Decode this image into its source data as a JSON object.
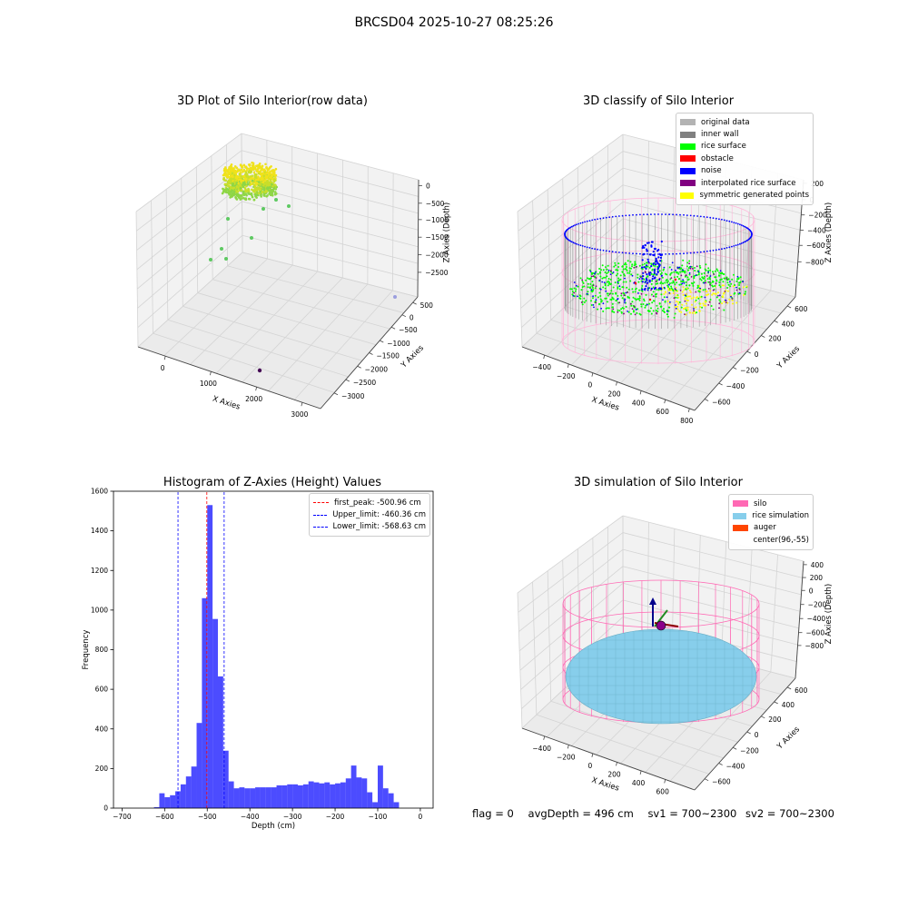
{
  "suptitle": "BRCSD04 2025-10-27 08:25:26",
  "panels": {
    "raw": {
      "title": "3D Plot of Silo Interior(row data)",
      "xlabel": "X Axies",
      "ylabel": "Y Axies",
      "zlabel": "Z Axies (Depth)",
      "xticks": [
        "0",
        "1000",
        "2000",
        "3000"
      ],
      "yticks": [
        "500",
        "0",
        "−500",
        "−1000",
        "−1500",
        "−2000",
        "−2500",
        "−3000"
      ],
      "zticks": [
        "0",
        "−500",
        "−1000",
        "−1500",
        "−2000",
        "−2500"
      ]
    },
    "classify": {
      "title": "3D classify of Silo Interior",
      "xlabel": "X Axies",
      "ylabel": "Y Axies",
      "zlabel": "Z Axies (Depth)",
      "xticks": [
        "−400",
        "−200",
        "0",
        "200",
        "400",
        "600",
        "800"
      ],
      "yticks": [
        "600",
        "400",
        "200",
        "0",
        "−200",
        "−400",
        "−600"
      ],
      "zticks": [
        "200",
        "0",
        "−200",
        "−400",
        "−600",
        "−800"
      ],
      "legend": [
        {
          "label": "original data",
          "color": "#b3b3b3"
        },
        {
          "label": "inner wall",
          "color": "#808080"
        },
        {
          "label": "rice surface",
          "color": "#00ff00"
        },
        {
          "label": "obstacle",
          "color": "#ff0000"
        },
        {
          "label": "noise",
          "color": "#0000ff"
        },
        {
          "label": "interpolated rice surface",
          "color": "#800080"
        },
        {
          "label": "symmetric generated points",
          "color": "#ffff00"
        }
      ]
    },
    "histogram": {
      "title": "Histogram of Z-Axies (Height) Values",
      "legend": [
        {
          "label": "first_peak: -500.96 cm",
          "color": "#ff0000"
        },
        {
          "label": "Upper_limit: -460.36 cm",
          "color": "#0000ff"
        },
        {
          "label": "Lower_limit: -568.63 cm",
          "color": "#0000ff"
        }
      ]
    },
    "simulation": {
      "title": "3D simulation of Silo Interior",
      "xlabel": "X Axies",
      "ylabel": "Y Axies",
      "zlabel": "Z Axies (Depth)",
      "xticks": [
        "−400",
        "−200",
        "0",
        "200",
        "400",
        "600"
      ],
      "yticks": [
        "600",
        "400",
        "200",
        "0",
        "−200",
        "−400",
        "−600"
      ],
      "zticks": [
        "400",
        "200",
        "0",
        "−200",
        "−400",
        "−600",
        "−800"
      ],
      "legend": [
        {
          "label": "silo",
          "color": "#ff69b4"
        },
        {
          "label": "rice simulation",
          "color": "#87ceeb"
        },
        {
          "label": "auger",
          "color": "#ff4500"
        },
        {
          "label": "center(96,-55)",
          "color": "#ffffff"
        }
      ]
    }
  },
  "footer": {
    "flag": "flag = 0",
    "avg": "avgDepth = 496 cm",
    "sv1": "sv1 = 700~2300",
    "sv2": "sv2 = 700~2300"
  },
  "chart_data": {
    "type": "bar",
    "title": "Histogram of Z-Axies (Height) Values",
    "xlabel": "Depth (cm)",
    "ylabel": "Frequency",
    "xlim": [
      -720,
      30
    ],
    "ylim": [
      0,
      1600
    ],
    "xticks": [
      -700,
      -600,
      -500,
      -400,
      -300,
      -200,
      -100,
      0
    ],
    "yticks": [
      0,
      200,
      400,
      600,
      800,
      1000,
      1200,
      1400,
      1600
    ],
    "bin_width": 12.5,
    "bin_start": -625,
    "values": [
      5,
      75,
      55,
      65,
      85,
      120,
      160,
      210,
      430,
      1060,
      1530,
      955,
      665,
      290,
      135,
      100,
      105,
      100,
      100,
      105,
      105,
      105,
      105,
      115,
      115,
      120,
      120,
      115,
      120,
      135,
      130,
      125,
      130,
      120,
      125,
      130,
      150,
      215,
      155,
      150,
      80,
      30,
      215,
      100,
      75,
      30
    ],
    "bar_color": "#0000ff",
    "vlines": [
      {
        "name": "first_peak",
        "x": -500.96,
        "color": "#ff0000"
      },
      {
        "name": "Upper_limit",
        "x": -460.36,
        "color": "#0000ff"
      },
      {
        "name": "Lower_limit",
        "x": -568.63,
        "color": "#0000ff"
      }
    ],
    "legend_position": "upper right"
  }
}
